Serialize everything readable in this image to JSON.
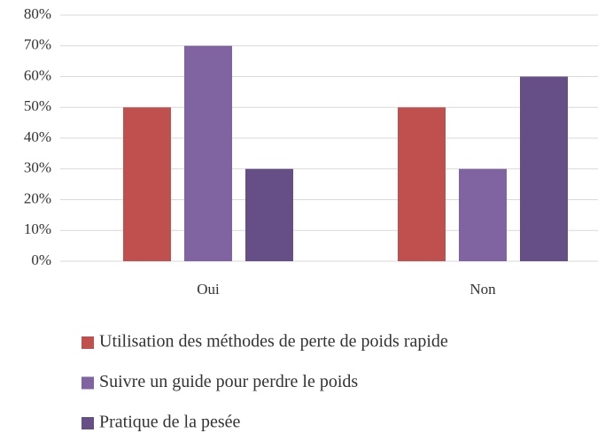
{
  "chart_data": {
    "type": "bar",
    "categories": [
      "Oui",
      "Non"
    ],
    "series": [
      {
        "name": "Utilisation des méthodes de perte de poids rapide",
        "color": "#c0504d",
        "values": [
          50,
          50
        ]
      },
      {
        "name": "Suivre un guide pour perdre le poids",
        "color": "#8064a2",
        "values": [
          70,
          30
        ]
      },
      {
        "name": "Pratique de la pesée",
        "color": "#654f86",
        "values": [
          30,
          60
        ]
      }
    ],
    "ylim": [
      0,
      80
    ],
    "yticks": [
      {
        "value": 0,
        "label": "0%"
      },
      {
        "value": 10,
        "label": "10%"
      },
      {
        "value": 20,
        "label": "20%"
      },
      {
        "value": 30,
        "label": "30%"
      },
      {
        "value": 40,
        "label": "40%"
      },
      {
        "value": 50,
        "label": "50%"
      },
      {
        "value": 60,
        "label": "60%"
      },
      {
        "value": 70,
        "label": "70%"
      },
      {
        "value": 80,
        "label": "80%"
      }
    ],
    "grid": true,
    "legend": "bottom"
  }
}
